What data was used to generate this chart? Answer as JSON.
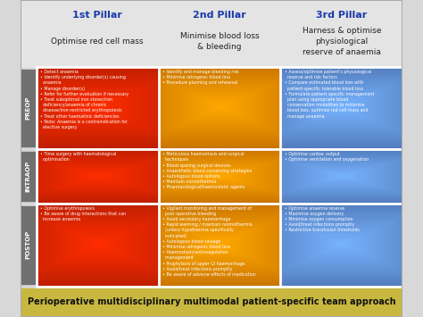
{
  "pillar_headers": [
    {
      "bold": "1st Pillar",
      "sub": "Optimise red cell mass"
    },
    {
      "bold": "2nd Pillar",
      "sub": "Minimise blood loss\n& bleeding"
    },
    {
      "bold": "3rd Pillar",
      "sub": "Harness & optimise\nphysiological\nreserve of anaemia"
    }
  ],
  "row_labels": [
    "PREOP",
    "INTRAOP",
    "POSTOP"
  ],
  "cells": [
    [
      "• Detect anaemia\n• Identify underlying disorder(s) causing\n  anaemia\n• Manage disorder(s)\n• Refer for further evaluation if necessary\n• Treat suboptimal iron stores/iron\n  deficiency/anaemia of chronic\n  disease/iron-restricted erythropoiesis\n• Treat other haematinic deficiencies\n• Note: Anaemia is a contraindication for\n  elective surgery",
      "• Identify and manage bleeding risk\n• Minimise iatrogenic blood loss\n• Procedure planning and rehearsal",
      "• Assess/optimise patient's physiological\n  reserve and risk factors\n• Compare estimated blood loss with\n  patient-specific tolerable blood loss\n• Formulate patient-specific management\n  plan using appropriate blood\n  conservation modalities to minimise\n  blood loss, optimise red cell mass and\n  manage anaemia"
    ],
    [
      "• Time surgery with haematological\n  optimisation",
      "• Meticulous haemostasis and surgical\n  techniques\n• Blood-sparing surgical devices\n• Anaesthetic blood conserving strategies\n• Autologous blood options\n• Maintain normothermia\n• Pharmacological/haemostatic agents",
      "• Optimise cardiac output\n• Optimise ventilation and oxygenation"
    ],
    [
      "• Optimise erythropoiesis\n• Be aware of drug interactions that can\n  increase anaemia",
      "• Vigilant monitoring and management of\n  post-operative bleeding\n• Avoid secondary haemorrhage\n• Rapid warming / maintain normothermia\n  (unless hypothermia specifically\n  indicated)\n• Autologous blood salvage\n• Minimise iatrogenic blood loss\n• Haemostasis/anticoagulation\n  management\n• Prophylaxis of upper GI haemorrhage\n• Avoid/treat infections promptly\n• Be aware of adverse effects of medication",
      "• Optimise anaemia reserve\n• Maximise oxygen delivery\n• Minimise oxygen consumption\n• Avoid/treat infections promptly\n• Restrictive transfusion thresholds"
    ]
  ],
  "cell_base_colors": [
    [
      "#d42000",
      "#f07800",
      "#5580d0"
    ],
    [
      "#d42000",
      "#f07800",
      "#5580d0"
    ],
    [
      "#d42000",
      "#f07800",
      "#5580d0"
    ]
  ],
  "pillar_header_colors": [
    "#1a3aaa",
    "#1a3aaa",
    "#1a3aaa"
  ],
  "footer_text": "Perioperative multidisciplinary multimodal patient-specific team approach",
  "footer_bg": "#c8b840",
  "footer_text_color": "#111111",
  "background_color": "#d8d8d8",
  "row_label_bg": "#707070",
  "row_label_text": "#ffffff"
}
